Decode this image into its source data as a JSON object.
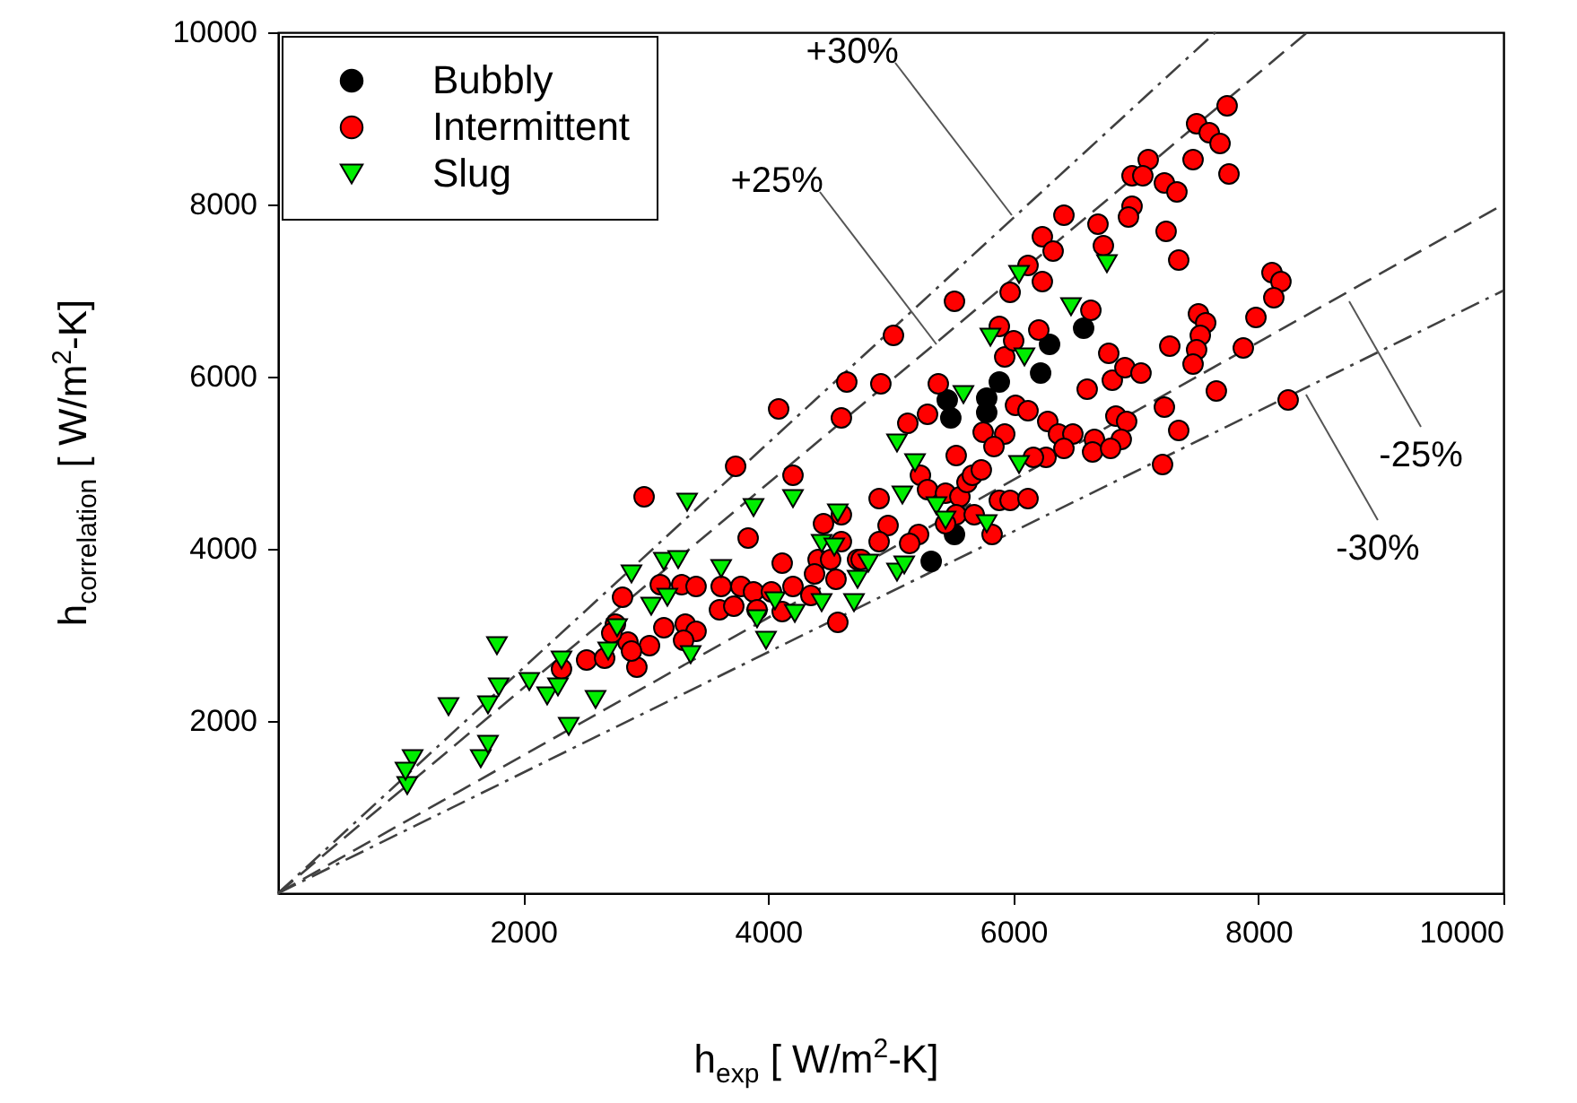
{
  "chart_data": {
    "type": "scatter",
    "xlabel": "h$_{exp}$ [ W/m$^{2}$-K]",
    "ylabel": "h$_{correlation}$ [ W/m$^{2}$-K]",
    "xlim": [
      0,
      10000
    ],
    "xticks": [
      2000,
      4000,
      6000,
      8000,
      10000
    ],
    "ylim": [
      0,
      10000
    ],
    "yticks": [
      2000,
      4000,
      6000,
      8000,
      10000
    ],
    "legend": "top left",
    "annotations": [
      {
        "text": "+30%",
        "x": 5988,
        "y": 7875
      },
      {
        "text": "+25%",
        "x": 5373,
        "y": 6375
      },
      {
        "text": "-25%",
        "x": 8741,
        "y": 6875
      },
      {
        "text": "-30%",
        "x": 8389,
        "y": 5792
      }
    ],
    "series": [
      {
        "type": "line",
        "color": "#404040",
        "line_style": "dotted",
        "x": [
          0,
          7650
        ],
        "values": [
          0,
          10000
        ]
      },
      {
        "type": "line",
        "color": "#404040",
        "line_style": "dashed",
        "x": [
          0,
          8400
        ],
        "values": [
          0,
          10000
        ]
      },
      {
        "type": "line",
        "color": "#404040",
        "line_style": "dashed",
        "x": [
          0,
          10000
        ],
        "values": [
          0,
          8000
        ]
      },
      {
        "type": "line",
        "color": "#404040",
        "line_style": "dotted",
        "x": [
          0,
          10000
        ],
        "values": [
          0,
          7000
        ]
      },
      {
        "type": "scatter",
        "name": "Bubbly",
        "color": "#000000",
        "marker": "circle",
        "x": [
          6574,
          6296,
          6223,
          5886,
          5783,
          5461,
          5490,
          5783,
          5520,
          5330
        ],
        "values": [
          6563,
          6375,
          6042,
          5938,
          5750,
          5729,
          5521,
          5583,
          4167,
          3854
        ]
      },
      {
        "type": "scatter",
        "name": "Intermittent",
        "color": "#ff0000",
        "marker": "circle",
        "x": [
          3734,
          4202,
          2987,
          3836,
          4114,
          4451,
          4597,
          4597,
          4407,
          4509,
          4378,
          4553,
          2811,
          3119,
          3294,
          3411,
          3616,
          3777,
          3880,
          4026,
          4202,
          4348,
          4114,
          3909,
          3602,
          3719,
          4568,
          2753,
          2855,
          3031,
          2928,
          3148,
          3323,
          3411,
          3309,
          2723,
          2518,
          2313,
          2665,
          2884,
          4729,
          5022,
          4641,
          4919,
          4597,
          4085,
          5388,
          5139,
          5300,
          5534,
          5754,
          5930,
          5842,
          6018,
          6120,
          5930,
          6003,
          6208,
          5886,
          6281,
          6369,
          6486,
          6413,
          6267,
          6164,
          6603,
          6808,
          6779,
          6911,
          6837,
          6925,
          6881,
          6662,
          6647,
          6794,
          7042,
          4905,
          4978,
          4905,
          4758,
          5227,
          5154,
          5242,
          5300,
          5447,
          5564,
          5622,
          5666,
          5739,
          5534,
          5681,
          5827,
          5886,
          5974,
          6120,
          5447,
          7745,
          7496,
          7599,
          7687,
          7760,
          7467,
          7101,
          6969,
          7057,
          7233,
          7335,
          6969,
          6940,
          7247,
          7350,
          6691,
          6413,
          6237,
          6325,
          6735,
          6120,
          5974,
          6237,
          6633,
          8111,
          8184,
          8126,
          7980,
          7511,
          7570,
          7526,
          7496,
          7467,
          7877,
          7277,
          7657,
          8243,
          7233,
          7350,
          7218,
          5520
        ],
        "values": [
          4958,
          4854,
          4604,
          4125,
          3833,
          4292,
          4396,
          4083,
          3875,
          3875,
          3708,
          3646,
          3438,
          3583,
          3583,
          3563,
          3563,
          3563,
          3500,
          3500,
          3563,
          3458,
          3271,
          3292,
          3292,
          3333,
          3146,
          3125,
          2917,
          2875,
          2625,
          3083,
          3125,
          3042,
          2938,
          3021,
          2708,
          2604,
          2729,
          2813,
          3875,
          6479,
          5938,
          5917,
          5521,
          5625,
          5917,
          5458,
          5563,
          5083,
          5354,
          5333,
          5188,
          5667,
          5604,
          6229,
          6417,
          6542,
          6583,
          5479,
          5333,
          5333,
          5167,
          5063,
          5063,
          5854,
          5958,
          6271,
          6104,
          5542,
          5479,
          5271,
          5271,
          5125,
          5167,
          6042,
          4583,
          4271,
          4083,
          3875,
          4167,
          4063,
          4854,
          4688,
          4646,
          4604,
          4771,
          4854,
          4917,
          4396,
          4396,
          4167,
          4563,
          4563,
          4583,
          4292,
          9146,
          8938,
          8833,
          8708,
          8354,
          8521,
          8521,
          8333,
          8333,
          8250,
          8146,
          7979,
          7854,
          7688,
          7354,
          7771,
          7875,
          7625,
          7458,
          7521,
          7292,
          6979,
          7104,
          6771,
          7208,
          7104,
          6917,
          6688,
          6729,
          6625,
          6479,
          6313,
          6146,
          6333,
          6354,
          5833,
          5729,
          5646,
          5375,
          4979,
          6875
        ]
      },
      {
        "type": "scatter",
        "name": "Slug",
        "color": "#00ee00",
        "marker": "triangle",
        "x": [
          1054,
          1098,
          1040,
          1391,
          1654,
          1713,
          1713,
          1801,
          1786,
          2050,
          2196,
          2284,
          2313,
          2372,
          2591,
          2694,
          2767,
          2884,
          3045,
          3148,
          3177,
          3265,
          3367,
          3338,
          3616,
          3880,
          3909,
          3982,
          4055,
          4202,
          4217,
          4436,
          4436,
          4539,
          4568,
          4700,
          4729,
          4817,
          5051,
          5110,
          5051,
          5198,
          5095,
          5373,
          5447,
          5783,
          6047,
          5593,
          5813,
          6091,
          6047,
          6764,
          6471
        ],
        "values": [
          1250,
          1563,
          1417,
          2167,
          1563,
          1729,
          2188,
          2396,
          2875,
          2458,
          2292,
          2396,
          2708,
          1938,
          2250,
          2813,
          3083,
          3708,
          3333,
          3854,
          3438,
          3875,
          2771,
          4542,
          3771,
          4479,
          3188,
          2938,
          3396,
          4583,
          3250,
          3375,
          4063,
          4021,
          4417,
          3375,
          3646,
          3833,
          3729,
          3813,
          5229,
          5000,
          4625,
          4500,
          4333,
          4292,
          4979,
          5792,
          6458,
          6229,
          7188,
          7313,
          6813
        ]
      }
    ]
  }
}
